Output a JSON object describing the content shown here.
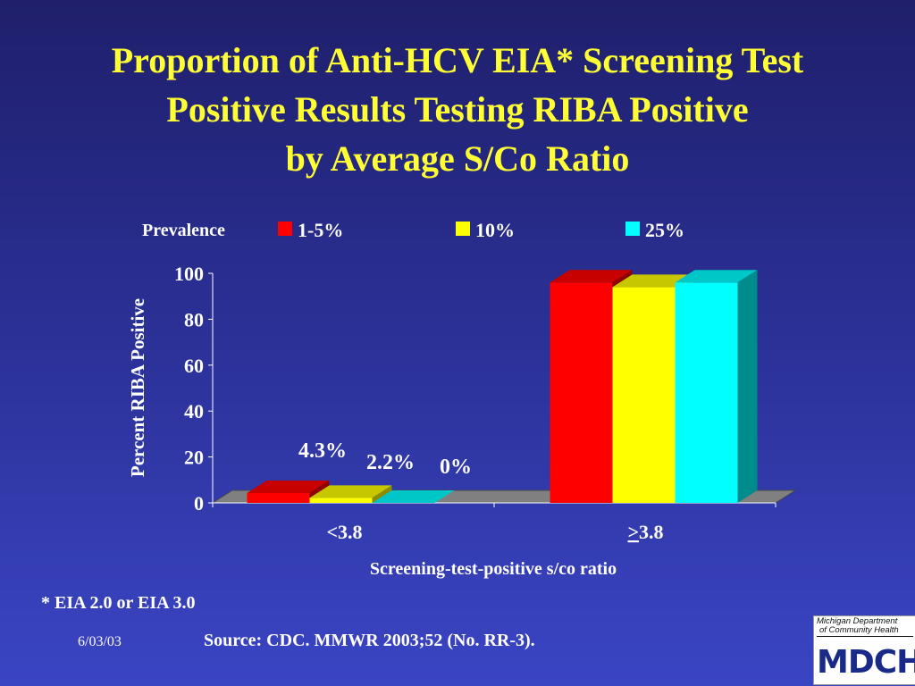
{
  "title": {
    "line1": "Proportion of Anti-HCV EIA* Screening Test",
    "line2": "Positive Results Testing RIBA Positive",
    "line3": "by Average S/Co Ratio"
  },
  "chart_data": {
    "type": "bar",
    "legend_title": "Prevalence",
    "legend_position": "top",
    "categories": [
      "<3.8",
      "≥3.8"
    ],
    "category_display": [
      {
        "prefix": "<",
        "underlined": "",
        "suffix": "3.8"
      },
      {
        "prefix": "",
        "underlined": ">",
        "suffix": "3.8"
      }
    ],
    "series": [
      {
        "name": "1-5%",
        "color": "#ff0000",
        "values": [
          4.3,
          96
        ]
      },
      {
        "name": "10%",
        "color": "#ffff00",
        "values": [
          2.2,
          94
        ]
      },
      {
        "name": "25%",
        "color": "#00ffff",
        "values": [
          0,
          96
        ]
      }
    ],
    "data_labels": [
      "4.3%",
      "2.2%",
      "0%"
    ],
    "ylabel": "Percent RIBA Positive",
    "xlabel": "Screening-test-positive s/co ratio",
    "ylim": [
      0,
      100
    ],
    "yticks": [
      0,
      20,
      40,
      60,
      80,
      100
    ],
    "grid": false,
    "style": "3d"
  },
  "footnote": "* EIA 2.0 or EIA 3.0",
  "date": "6/03/03",
  "source": "Source: CDC. MMWR 2003;52 (No. RR-3).",
  "logo": {
    "line1": "Michigan Department",
    "line2": "of Community Health",
    "mark": "MDCH",
    "colors": {
      "primary": "#1a2a88",
      "secondary": "#2e9e3a"
    }
  }
}
